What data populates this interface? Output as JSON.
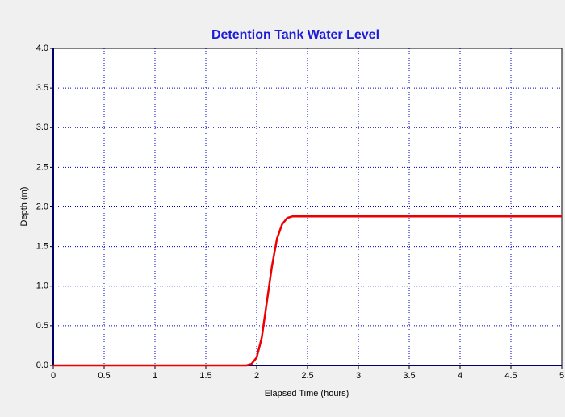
{
  "chart_data": {
    "type": "line",
    "title": "Detention Tank Water Level",
    "xlabel": "Elapsed Time (hours)",
    "ylabel": "Depth (m)",
    "x": [
      0,
      1.9,
      1.95,
      2.0,
      2.05,
      2.1,
      2.15,
      2.2,
      2.25,
      2.3,
      2.35,
      5
    ],
    "values": [
      0,
      0,
      0.02,
      0.1,
      0.35,
      0.8,
      1.25,
      1.6,
      1.78,
      1.86,
      1.88,
      1.88
    ],
    "color": "#ee0000",
    "xlim": [
      0,
      5
    ],
    "ylim": [
      0,
      4
    ],
    "xticks": [
      0,
      0.5,
      1,
      1.5,
      2,
      2.5,
      3,
      3.5,
      4,
      4.5,
      5
    ],
    "yticks": [
      {
        "value": 0,
        "label": "0.0"
      },
      {
        "value": 0.5,
        "label": "0.5"
      },
      {
        "value": 1,
        "label": "1.0"
      },
      {
        "value": 1.5,
        "label": "1.5"
      },
      {
        "value": 2,
        "label": "2.0"
      },
      {
        "value": 2.5,
        "label": "2.5"
      },
      {
        "value": 3,
        "label": "3.0"
      },
      {
        "value": 3.5,
        "label": "3.5"
      },
      {
        "value": 4,
        "label": "4.0"
      }
    ],
    "grid": true
  }
}
